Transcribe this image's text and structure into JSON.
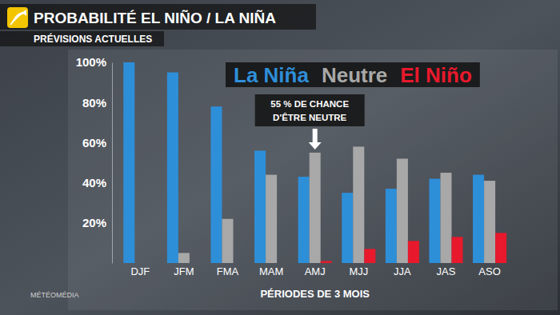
{
  "chart_data": {
    "type": "bar",
    "title": "PROBABILITÉ EL NIÑO / LA NIÑA",
    "subtitle": "PRÉVISIONS ACTUELLES",
    "x_label": "PÉRIODES DE 3 MOIS",
    "source": "MÉTÉOMÉDIA",
    "annotations": [
      {
        "lines": [
          "55 % DE CHANCE",
          "D'ÊTRE NEUTRE"
        ]
      }
    ],
    "categories": [
      "DJF",
      "JFM",
      "FMA",
      "MAM",
      "AMJ",
      "MJJ",
      "JJA",
      "JAS",
      "ASO"
    ],
    "series": [
      {
        "name": "La Niña",
        "color": "#2e8fd9",
        "values": [
          100,
          95,
          78,
          56,
          43,
          35,
          37,
          42,
          44
        ]
      },
      {
        "name": "Neutre",
        "color": "#a8a8a8",
        "values": [
          0,
          5,
          22,
          44,
          55,
          58,
          52,
          45,
          41
        ]
      },
      {
        "name": "El Niño",
        "color": "#e8192c",
        "values": [
          0,
          0,
          0,
          0,
          1,
          7,
          11,
          13,
          15
        ]
      }
    ],
    "ylim": [
      0,
      100
    ],
    "yticks": [
      {
        "value": 20,
        "label": "20%"
      },
      {
        "value": 40,
        "label": "40%"
      },
      {
        "value": 60,
        "label": "60%"
      },
      {
        "value": 80,
        "label": "80%"
      },
      {
        "value": 100,
        "label": "100%"
      }
    ],
    "grid": false,
    "legend": "top"
  }
}
